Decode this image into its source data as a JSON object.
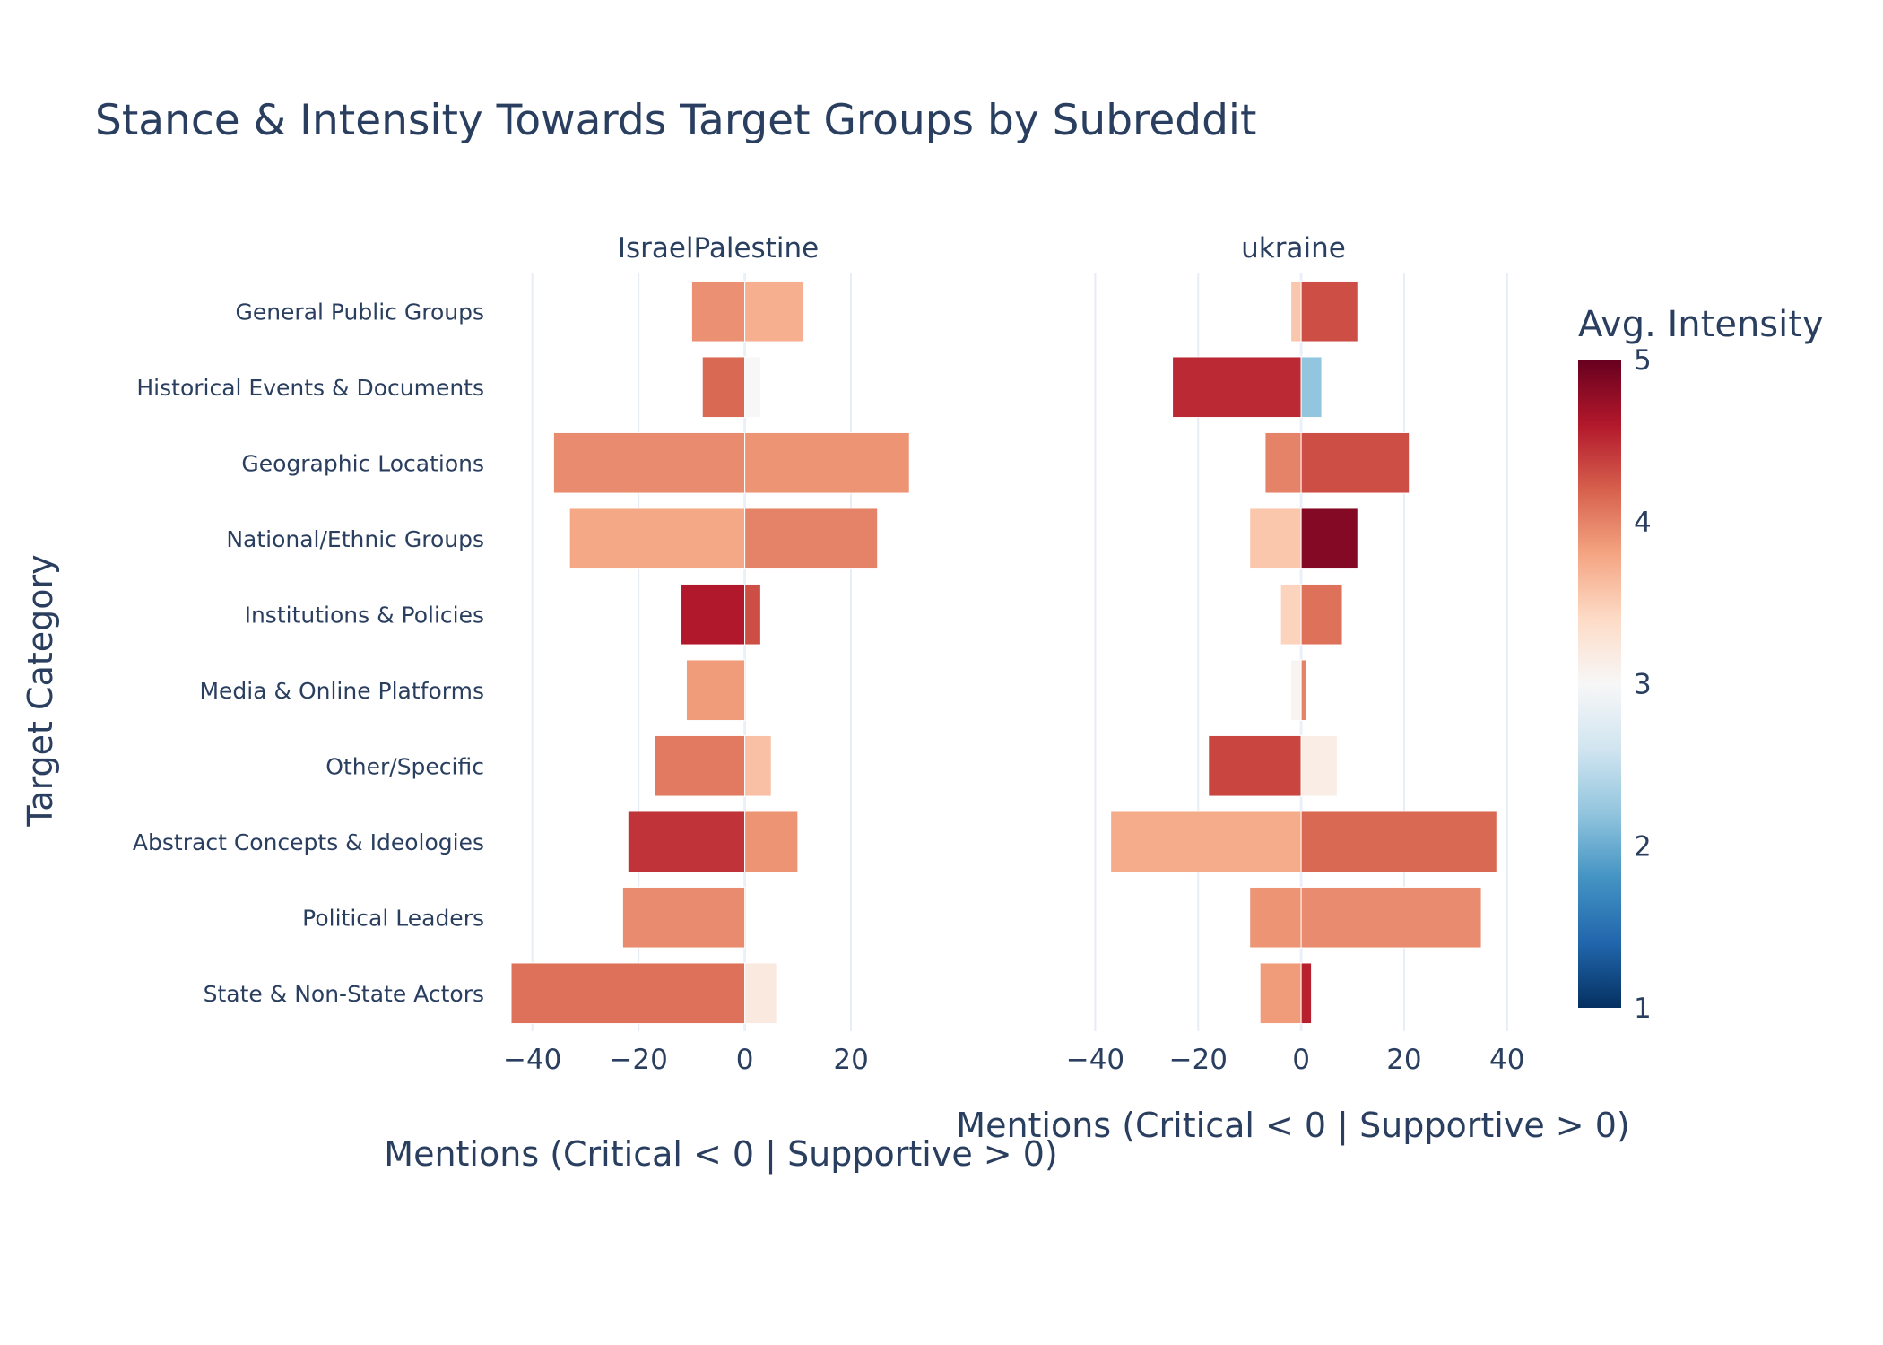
{
  "chart_data": {
    "type": "bar",
    "orientation": "horizontal",
    "title": "Stance & Intensity Towards Target Groups by Subreddit",
    "ylabel": "Target Category",
    "categories": [
      "General Public Groups",
      "Historical Events & Documents",
      "Geographic Locations",
      "National/Ethnic Groups",
      "Institutions & Policies",
      "Media & Online Platforms",
      "Other/Specific",
      "Abstract Concepts & Ideologies",
      "Political Leaders",
      "State & Non-State Actors"
    ],
    "colorbar": {
      "title": "Avg. Intensity",
      "range": [
        1,
        5
      ],
      "ticks": [
        "1",
        "2",
        "3",
        "4",
        "5"
      ],
      "colorscale": [
        "#053061",
        "#2166ac",
        "#4393c3",
        "#92c5de",
        "#d1e5f0",
        "#f7f7f7",
        "#fddbc7",
        "#f4a582",
        "#d6604d",
        "#b2182b",
        "#67001f"
      ]
    },
    "panels": [
      {
        "name": "IsraelPalestine",
        "xlabel": "Mentions (Critical < 0 | Supportive > 0)",
        "xrange": [
          -44,
          34
        ],
        "xticks": [
          -40,
          -20,
          0,
          20
        ],
        "xtick_labels": [
          "−40",
          "−20",
          "0",
          "20"
        ],
        "critical": [
          -10,
          -8,
          -36,
          -33,
          -12,
          -11,
          -17,
          -22,
          -23,
          -44
        ],
        "critical_intensity": [
          3.92,
          4.15,
          3.95,
          3.78,
          4.6,
          3.85,
          4.05,
          4.45,
          3.95,
          4.1
        ],
        "supportive": [
          11,
          3,
          31,
          25,
          3,
          0,
          5,
          10,
          0,
          6
        ],
        "supportive_intensity": [
          3.72,
          3.0,
          3.9,
          4.0,
          4.3,
          3.5,
          3.6,
          3.9,
          3.5,
          3.2
        ]
      },
      {
        "name": "ukraine",
        "xlabel": "Mentions (Critical < 0 | Supportive > 0)",
        "xrange": [
          -46,
          43
        ],
        "xticks": [
          -40,
          -20,
          0,
          20,
          40
        ],
        "xtick_labels": [
          "−40",
          "−20",
          "0",
          "20",
          "40"
        ],
        "critical": [
          -2,
          -25,
          -7,
          -10,
          -4,
          -2,
          -18,
          -37,
          -10,
          -8
        ],
        "critical_intensity": [
          3.55,
          4.5,
          4.0,
          3.55,
          3.45,
          3.05,
          4.35,
          3.75,
          3.9,
          3.85
        ],
        "supportive": [
          11,
          4,
          21,
          11,
          8,
          1,
          7,
          38,
          35,
          2
        ],
        "supportive_intensity": [
          4.3,
          2.2,
          4.3,
          4.85,
          4.1,
          4.0,
          3.15,
          4.15,
          3.95,
          4.55
        ]
      }
    ]
  }
}
